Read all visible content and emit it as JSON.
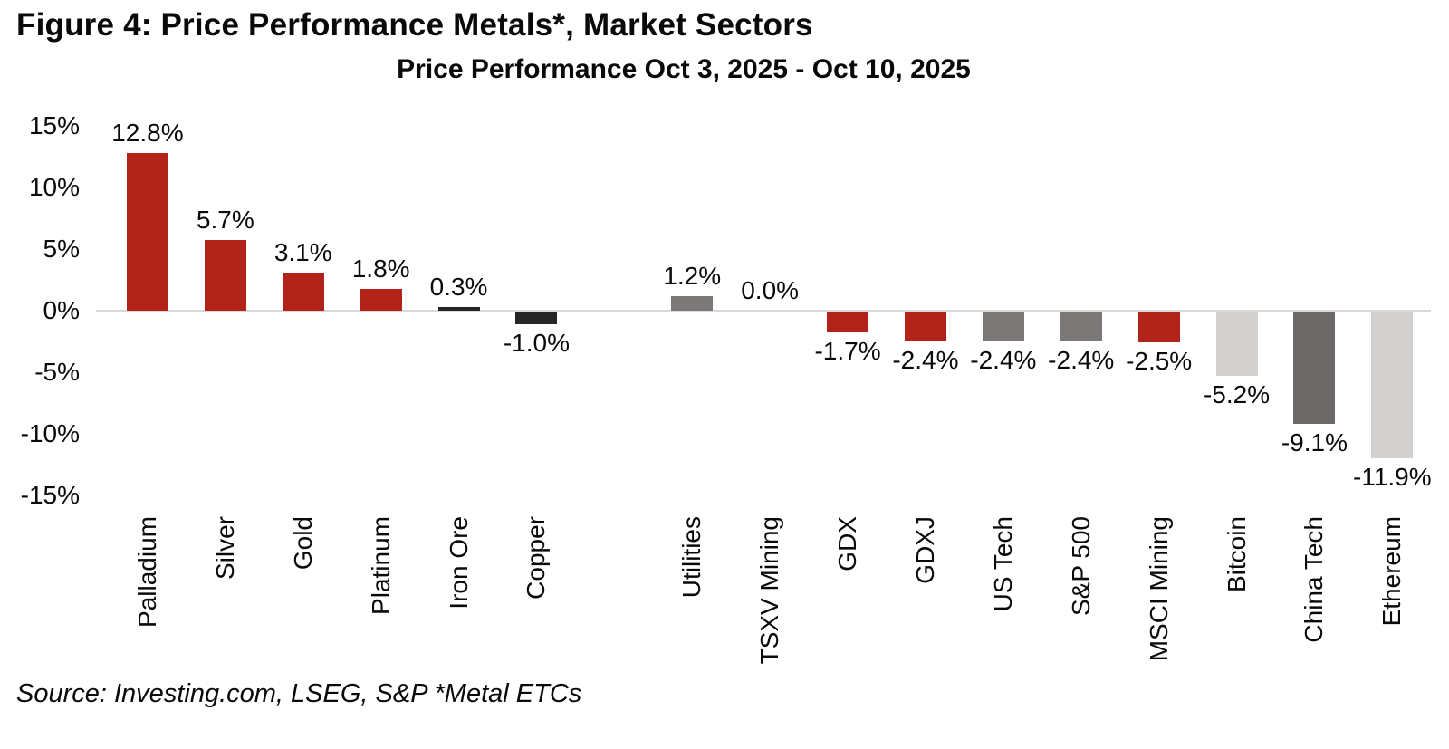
{
  "figure": {
    "title": "Figure 4: Price Performance Metals*, Market Sectors",
    "subtitle": "Price Performance Oct 3, 2025 - Oct 10, 2025",
    "source": "Source: Investing.com, LSEG, S&P *Metal ETCs"
  },
  "palette": {
    "red": "#B2241A",
    "near_black": "#262626",
    "gray": "#7D7878",
    "dark_gray": "#6E6969",
    "light_gray": "#D3D0D0",
    "axis_line": "#D9D9D9"
  },
  "chart_data": {
    "type": "bar",
    "title": "Price Performance Oct 3, 2025 - Oct 10, 2025",
    "xlabel": "",
    "ylabel": "",
    "ylim": [
      -15,
      15
    ],
    "ytick_values": [
      15,
      10,
      5,
      0,
      -5,
      -10,
      -15
    ],
    "ytick_labels": [
      "15%",
      "10%",
      "5%",
      "0%",
      "-5%",
      "-10%",
      "-15%"
    ],
    "grid": false,
    "legend": false,
    "group_spacer_after_index": 5,
    "categories": [
      "Palladium",
      "Silver",
      "Gold",
      "Platinum",
      "Iron Ore",
      "Copper",
      "Utilities",
      "TSXV Mining",
      "GDX",
      "GDXJ",
      "US Tech",
      "S&P 500",
      "MSCI Mining",
      "Bitcoin",
      "China Tech",
      "Ethereum"
    ],
    "values": [
      12.8,
      5.7,
      3.1,
      1.8,
      0.3,
      -1.0,
      1.2,
      0.0,
      -1.7,
      -2.4,
      -2.4,
      -2.4,
      -2.5,
      -5.2,
      -9.1,
      -11.9
    ],
    "points": [
      {
        "category": "Palladium",
        "value": 12.8,
        "label": "12.8%",
        "color": "#B2241A"
      },
      {
        "category": "Silver",
        "value": 5.7,
        "label": "5.7%",
        "color": "#B2241A"
      },
      {
        "category": "Gold",
        "value": 3.1,
        "label": "3.1%",
        "color": "#B2241A"
      },
      {
        "category": "Platinum",
        "value": 1.8,
        "label": "1.8%",
        "color": "#B2241A"
      },
      {
        "category": "Iron Ore",
        "value": 0.3,
        "label": "0.3%",
        "color": "#262626"
      },
      {
        "category": "Copper",
        "value": -1.0,
        "label": "-1.0%",
        "color": "#262626"
      },
      {
        "category": "Utilities",
        "value": 1.2,
        "label": "1.2%",
        "color": "#7D7878"
      },
      {
        "category": "TSXV Mining",
        "value": 0.0,
        "label": "0.0%",
        "color": null
      },
      {
        "category": "GDX",
        "value": -1.7,
        "label": "-1.7%",
        "color": "#B2241A"
      },
      {
        "category": "GDXJ",
        "value": -2.4,
        "label": "-2.4%",
        "color": "#B2241A"
      },
      {
        "category": "US Tech",
        "value": -2.4,
        "label": "-2.4%",
        "color": "#7D7878"
      },
      {
        "category": "S&P 500",
        "value": -2.4,
        "label": "-2.4%",
        "color": "#7D7878"
      },
      {
        "category": "MSCI Mining",
        "value": -2.5,
        "label": "-2.5%",
        "color": "#B2241A"
      },
      {
        "category": "Bitcoin",
        "value": -5.2,
        "label": "-5.2%",
        "color": "#D3D0D0"
      },
      {
        "category": "China Tech",
        "value": -9.1,
        "label": "-9.1%",
        "color": "#6E6969"
      },
      {
        "category": "Ethereum",
        "value": -11.9,
        "label": "-11.9%",
        "color": "#D3D0D0"
      }
    ]
  }
}
